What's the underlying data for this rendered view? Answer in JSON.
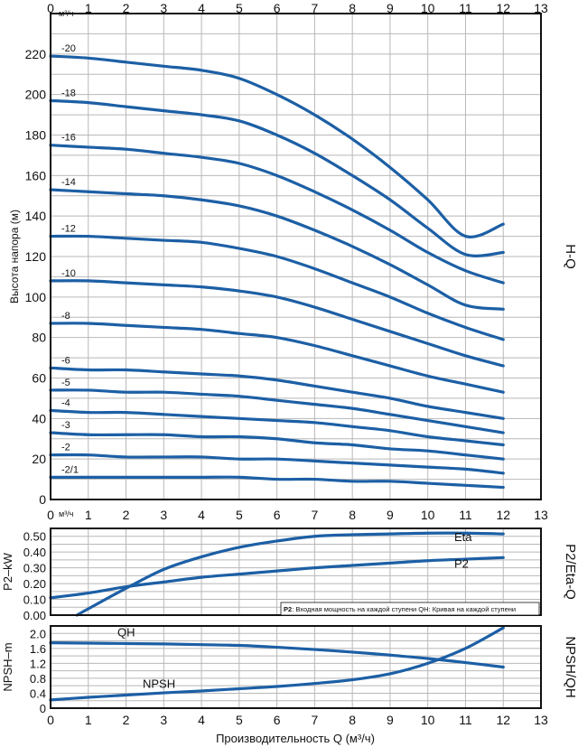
{
  "colors": {
    "curve": "#1c5fa5",
    "grid": "#b8b8b8",
    "frame": "#111111"
  },
  "x_ticks": [
    "0",
    "1",
    "2",
    "3",
    "4",
    "5",
    "6",
    "7",
    "8",
    "9",
    "10",
    "11",
    "12",
    "13"
  ],
  "unit_label": "м³/ч",
  "xlabel": "Производительность Q (м³/ч)",
  "chart_data": [
    {
      "type": "line",
      "panel_title": "H-Q",
      "ylabel": "Высота напора (м)",
      "xlim": [
        0,
        13
      ],
      "ylim": [
        0,
        240
      ],
      "y_ticks": [
        "0",
        "20",
        "40",
        "60",
        "80",
        "100",
        "120",
        "140",
        "160",
        "180",
        "200",
        "220"
      ],
      "grid": true,
      "series": [
        {
          "name": "-20",
          "x": [
            0,
            1,
            2,
            3,
            4,
            5,
            6,
            7,
            8,
            9,
            10,
            11,
            12
          ],
          "y": [
            219,
            218,
            216,
            214,
            212,
            208,
            200,
            190,
            178,
            164,
            148,
            130,
            136
          ]
        },
        {
          "name": "-18",
          "x": [
            0,
            1,
            2,
            3,
            4,
            5,
            6,
            7,
            8,
            9,
            10,
            11,
            12
          ],
          "y": [
            197,
            196,
            194,
            192,
            190,
            187,
            180,
            171,
            160,
            148,
            134,
            121,
            122
          ]
        },
        {
          "name": "-16",
          "x": [
            0,
            1,
            2,
            3,
            4,
            5,
            6,
            7,
            8,
            9,
            10,
            11,
            12
          ],
          "y": [
            175,
            174,
            173,
            171,
            169,
            166,
            160,
            152,
            143,
            133,
            122,
            113,
            107
          ]
        },
        {
          "name": "-14",
          "x": [
            0,
            1,
            2,
            3,
            4,
            5,
            6,
            7,
            8,
            9,
            10,
            11,
            12
          ],
          "y": [
            153,
            152,
            151,
            150,
            148,
            145,
            140,
            133,
            125,
            116,
            106,
            96,
            94
          ]
        },
        {
          "name": "-12",
          "x": [
            0,
            1,
            2,
            3,
            4,
            5,
            6,
            7,
            8,
            9,
            10,
            11,
            12
          ],
          "y": [
            130,
            130,
            129,
            128,
            127,
            124,
            120,
            114,
            107,
            100,
            92,
            85,
            79
          ]
        },
        {
          "name": "-10",
          "x": [
            0,
            1,
            2,
            3,
            4,
            5,
            6,
            7,
            8,
            9,
            10,
            11,
            12
          ],
          "y": [
            108,
            108,
            107,
            106,
            105,
            103,
            100,
            95,
            89,
            83,
            77,
            71,
            66
          ]
        },
        {
          "name": "-8",
          "x": [
            0,
            1,
            2,
            3,
            4,
            5,
            6,
            7,
            8,
            9,
            10,
            11,
            12
          ],
          "y": [
            87,
            87,
            86,
            85,
            84,
            82,
            80,
            76,
            71,
            66,
            61,
            57,
            53
          ]
        },
        {
          "name": "-6",
          "x": [
            0,
            1,
            2,
            3,
            4,
            5,
            6,
            7,
            8,
            9,
            10,
            11,
            12
          ],
          "y": [
            65,
            64,
            64,
            63,
            62,
            61,
            59,
            56,
            53,
            50,
            46,
            43,
            40
          ]
        },
        {
          "name": "-5",
          "x": [
            0,
            1,
            2,
            3,
            4,
            5,
            6,
            7,
            8,
            9,
            10,
            11,
            12
          ],
          "y": [
            54,
            54,
            53,
            53,
            52,
            51,
            49,
            47,
            45,
            42,
            39,
            36,
            33
          ]
        },
        {
          "name": "-4",
          "x": [
            0,
            1,
            2,
            3,
            4,
            5,
            6,
            7,
            8,
            9,
            10,
            11,
            12
          ],
          "y": [
            44,
            43,
            43,
            42,
            41,
            40,
            39,
            38,
            36,
            34,
            31,
            29,
            27
          ]
        },
        {
          "name": "-3",
          "x": [
            0,
            1,
            2,
            3,
            4,
            5,
            6,
            7,
            8,
            9,
            10,
            11,
            12
          ],
          "y": [
            33,
            32,
            32,
            32,
            31,
            31,
            30,
            28,
            27,
            25,
            24,
            22,
            20
          ]
        },
        {
          "name": "-2",
          "x": [
            0,
            1,
            2,
            3,
            4,
            5,
            6,
            7,
            8,
            9,
            10,
            11,
            12
          ],
          "y": [
            22,
            22,
            21,
            21,
            21,
            20,
            20,
            19,
            18,
            17,
            16,
            15,
            13
          ]
        },
        {
          "name": "-2/1",
          "x": [
            0,
            1,
            2,
            3,
            4,
            5,
            6,
            7,
            8,
            9,
            10,
            11,
            12
          ],
          "y": [
            11,
            11,
            11,
            11,
            11,
            11,
            10,
            10,
            9,
            9,
            8,
            7,
            6
          ]
        }
      ]
    },
    {
      "type": "line",
      "panel_title": "P2/Eta-Q",
      "ylabel": "P2–kW",
      "xlim": [
        0,
        13
      ],
      "ylim": [
        0,
        0.55
      ],
      "y_ticks": [
        "0.00",
        "0.10",
        "0.20",
        "0.30",
        "0.40",
        "0.50"
      ],
      "grid": true,
      "series": [
        {
          "name": "Eta",
          "x": [
            0.7,
            1,
            2,
            3,
            4,
            5,
            6,
            7,
            8,
            9,
            10,
            11,
            12
          ],
          "y": [
            0,
            0.04,
            0.17,
            0.29,
            0.37,
            0.43,
            0.47,
            0.5,
            0.51,
            0.515,
            0.52,
            0.52,
            0.515
          ]
        },
        {
          "name": "P2",
          "x": [
            0,
            1,
            2,
            3,
            4,
            5,
            6,
            7,
            8,
            9,
            10,
            11,
            12
          ],
          "y": [
            0.11,
            0.14,
            0.18,
            0.21,
            0.24,
            0.26,
            0.28,
            0.3,
            0.315,
            0.33,
            0.345,
            0.355,
            0.365
          ]
        }
      ],
      "annotation_bold": "P2",
      "annotation": ": Входная мощность на каждой ступени QH: Кривая на каждой ступени"
    },
    {
      "type": "line",
      "panel_title": "NPSH/QH",
      "ylabel": "NPSH–m",
      "xlim": [
        0,
        13
      ],
      "ylim": [
        0,
        2.2
      ],
      "y_ticks": [
        "0",
        "0.4",
        "0.8",
        "1.2",
        "1.6",
        "2.0"
      ],
      "grid": true,
      "series": [
        {
          "name": "QH",
          "x": [
            0,
            1,
            2,
            3,
            4,
            5,
            6,
            7,
            8,
            9,
            10,
            11,
            12
          ],
          "y": [
            1.75,
            1.74,
            1.73,
            1.72,
            1.7,
            1.68,
            1.63,
            1.57,
            1.5,
            1.42,
            1.33,
            1.22,
            1.1
          ]
        },
        {
          "name": "NPSH",
          "x": [
            0,
            1,
            2,
            3,
            4,
            5,
            6,
            7,
            8,
            9,
            10,
            11,
            12
          ],
          "y": [
            0.22,
            0.29,
            0.35,
            0.41,
            0.46,
            0.52,
            0.58,
            0.66,
            0.76,
            0.92,
            1.2,
            1.6,
            2.15
          ]
        }
      ]
    }
  ]
}
